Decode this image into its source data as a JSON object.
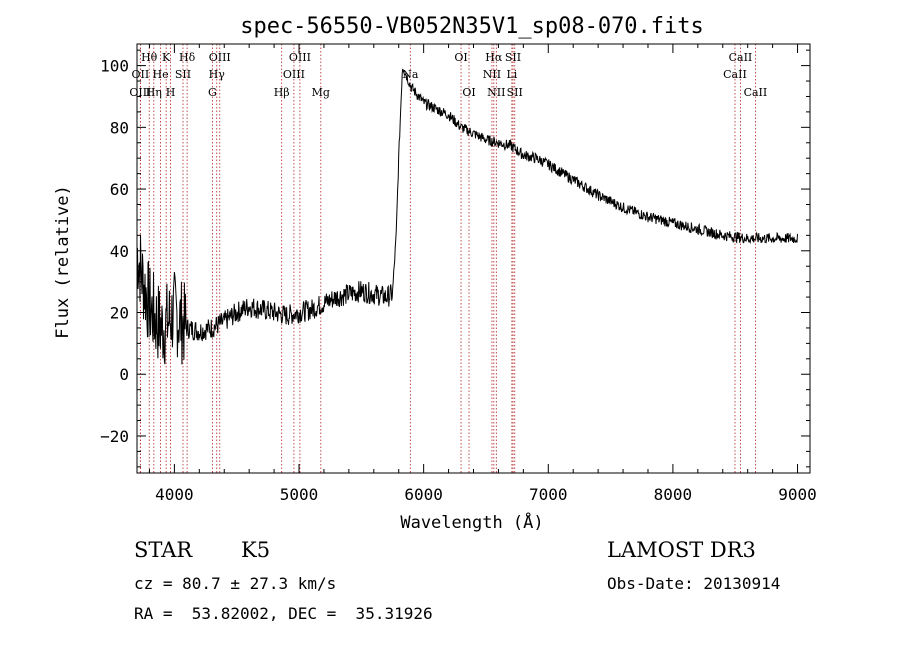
{
  "chart_data": {
    "type": "line",
    "title": "spec-56550-VB052N35V1_sp08-070.fits",
    "xlabel": "Wavelength (Å)",
    "ylabel": "Flux (relative)",
    "xlim": [
      3700,
      9100
    ],
    "ylim": [
      -32,
      107
    ],
    "x_ticks": [
      4000,
      5000,
      6000,
      7000,
      8000,
      9000
    ],
    "y_ticks": [
      -20,
      0,
      20,
      40,
      60,
      80,
      100
    ],
    "x_tick_labels": [
      "4000",
      "5000",
      "6000",
      "7000",
      "8000",
      "9000"
    ],
    "y_tick_labels": [
      "−20",
      "0",
      "20",
      "40",
      "60",
      "80",
      "100"
    ],
    "series": [
      {
        "name": "flux",
        "x": [
          3700,
          3750,
          3800,
          3850,
          3900,
          3950,
          4000,
          4100,
          4200,
          4300,
          4400,
          4500,
          4600,
          4700,
          4800,
          4900,
          5000,
          5100,
          5200,
          5300,
          5400,
          5500,
          5600,
          5700,
          5750,
          5780,
          5800,
          5830,
          5860,
          5900,
          6000,
          6100,
          6200,
          6300,
          6400,
          6500,
          6600,
          6700,
          6800,
          6900,
          7000,
          7200,
          7400,
          7600,
          7800,
          8000,
          8200,
          8400,
          8600,
          8800,
          9000
        ],
        "y": [
          40,
          30,
          22,
          18,
          15,
          17,
          20,
          15,
          14,
          15,
          17,
          20,
          22,
          21,
          20,
          19,
          20,
          21,
          23,
          25,
          26,
          27,
          26,
          25,
          26,
          45,
          70,
          100,
          97,
          93,
          88,
          86,
          84,
          80,
          78,
          76,
          75,
          74,
          71,
          70,
          68,
          63,
          58,
          54,
          51,
          49,
          47,
          45,
          44,
          44,
          44
        ]
      }
    ],
    "line_annotations": [
      {
        "label": "Hθ",
        "x": 3798,
        "row": 1
      },
      {
        "label": "K",
        "x": 3934,
        "row": 1
      },
      {
        "label": "Hδ",
        "x": 4102,
        "row": 1
      },
      {
        "label": "OIII",
        "x": 4364,
        "row": 1
      },
      {
        "label": "OIII",
        "x": 5007,
        "row": 1
      },
      {
        "label": "OI",
        "x": 6300,
        "row": 1
      },
      {
        "label": "Hα",
        "x": 6563,
        "row": 1
      },
      {
        "label": "SII",
        "x": 6717,
        "row": 1
      },
      {
        "label": "CaII",
        "x": 8542,
        "row": 1
      },
      {
        "label": "OII",
        "x": 3727,
        "row": 2
      },
      {
        "label": "He",
        "x": 3889,
        "row": 2
      },
      {
        "label": "SII",
        "x": 4069,
        "row": 2
      },
      {
        "label": "Hγ",
        "x": 4340,
        "row": 2
      },
      {
        "label": "OIII",
        "x": 4959,
        "row": 2
      },
      {
        "label": "Na",
        "x": 5893,
        "row": 2
      },
      {
        "label": "NII",
        "x": 6548,
        "row": 2
      },
      {
        "label": "Li",
        "x": 6708,
        "row": 2
      },
      {
        "label": "CaII",
        "x": 8498,
        "row": 2
      },
      {
        "label": "OIII",
        "x": 3727,
        "row": 3
      },
      {
        "label": "Hη",
        "x": 3835,
        "row": 3
      },
      {
        "label": "H",
        "x": 3969,
        "row": 3
      },
      {
        "label": "G",
        "x": 4305,
        "row": 3
      },
      {
        "label": "Hβ",
        "x": 4861,
        "row": 3
      },
      {
        "label": "Mg",
        "x": 5175,
        "row": 3
      },
      {
        "label": "OI",
        "x": 6364,
        "row": 3
      },
      {
        "label": "NII",
        "x": 6583,
        "row": 3
      },
      {
        "label": "SII",
        "x": 6731,
        "row": 3
      },
      {
        "label": "CaII",
        "x": 8662,
        "row": 3
      }
    ]
  },
  "info": {
    "object_type": "STAR",
    "subclass": "K5",
    "survey": "LAMOST DR3",
    "cz": "cz = 80.7 ± 27.3 km/s",
    "obs_date": "Obs-Date: 20130914",
    "coords": "RA =  53.82002, DEC =  35.31926"
  },
  "colors": {
    "line": "#000000",
    "marker": "#b22222"
  }
}
